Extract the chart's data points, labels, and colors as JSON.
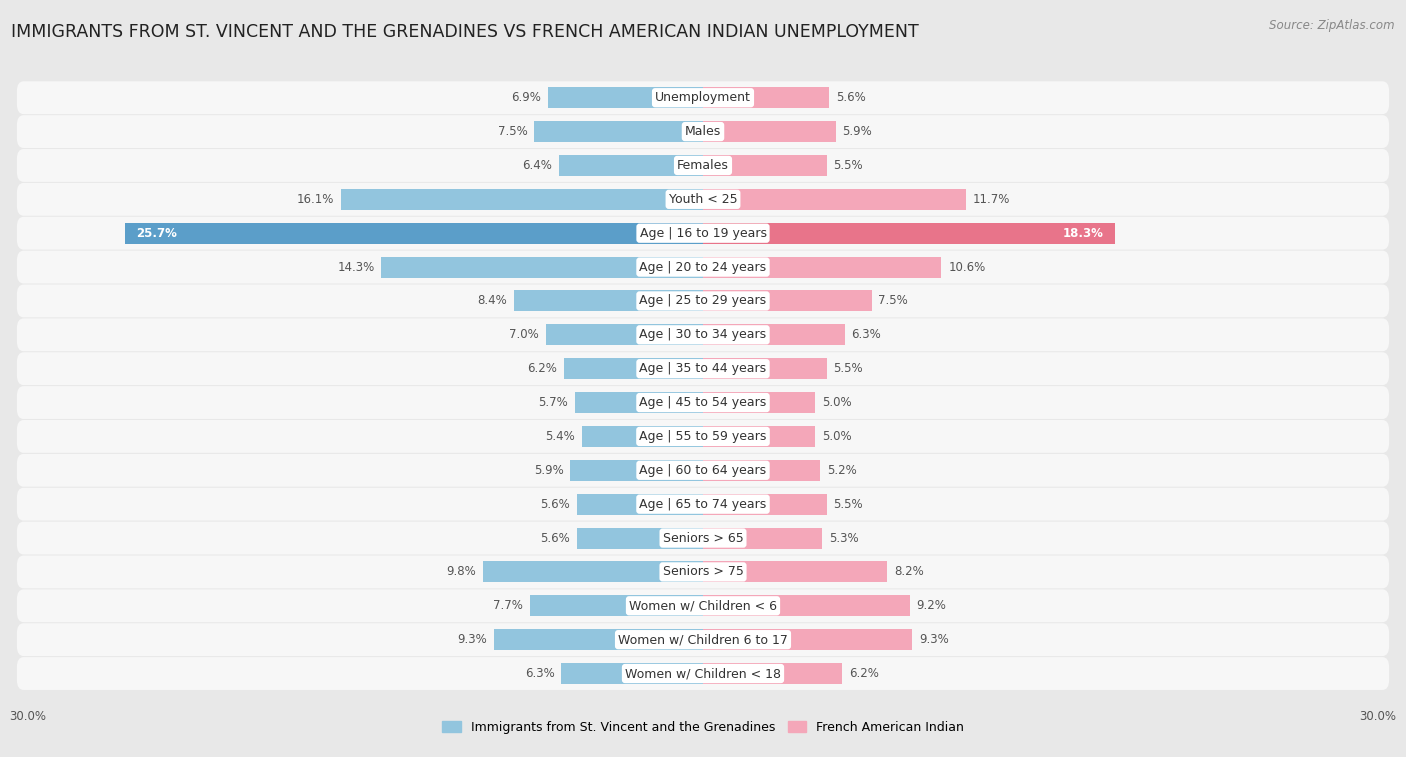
{
  "title": "IMMIGRANTS FROM ST. VINCENT AND THE GRENADINES VS FRENCH AMERICAN INDIAN UNEMPLOYMENT",
  "source": "Source: ZipAtlas.com",
  "categories": [
    "Unemployment",
    "Males",
    "Females",
    "Youth < 25",
    "Age | 16 to 19 years",
    "Age | 20 to 24 years",
    "Age | 25 to 29 years",
    "Age | 30 to 34 years",
    "Age | 35 to 44 years",
    "Age | 45 to 54 years",
    "Age | 55 to 59 years",
    "Age | 60 to 64 years",
    "Age | 65 to 74 years",
    "Seniors > 65",
    "Seniors > 75",
    "Women w/ Children < 6",
    "Women w/ Children 6 to 17",
    "Women w/ Children < 18"
  ],
  "left_values": [
    6.9,
    7.5,
    6.4,
    16.1,
    25.7,
    14.3,
    8.4,
    7.0,
    6.2,
    5.7,
    5.4,
    5.9,
    5.6,
    5.6,
    9.8,
    7.7,
    9.3,
    6.3
  ],
  "right_values": [
    5.6,
    5.9,
    5.5,
    11.7,
    18.3,
    10.6,
    7.5,
    6.3,
    5.5,
    5.0,
    5.0,
    5.2,
    5.5,
    5.3,
    8.2,
    9.2,
    9.3,
    6.2
  ],
  "left_color": "#92c5de",
  "right_color": "#f4a7b9",
  "left_highlight_color": "#5b9ec9",
  "right_highlight_color": "#e8748a",
  "left_label": "Immigrants from St. Vincent and the Grenadines",
  "right_label": "French American Indian",
  "xlim": 30.0,
  "bg_color": "#e8e8e8",
  "bar_bg_color": "#f7f7f7",
  "title_fontsize": 12.5,
  "label_fontsize": 9,
  "tick_fontsize": 8.5,
  "highlight_row": 4
}
